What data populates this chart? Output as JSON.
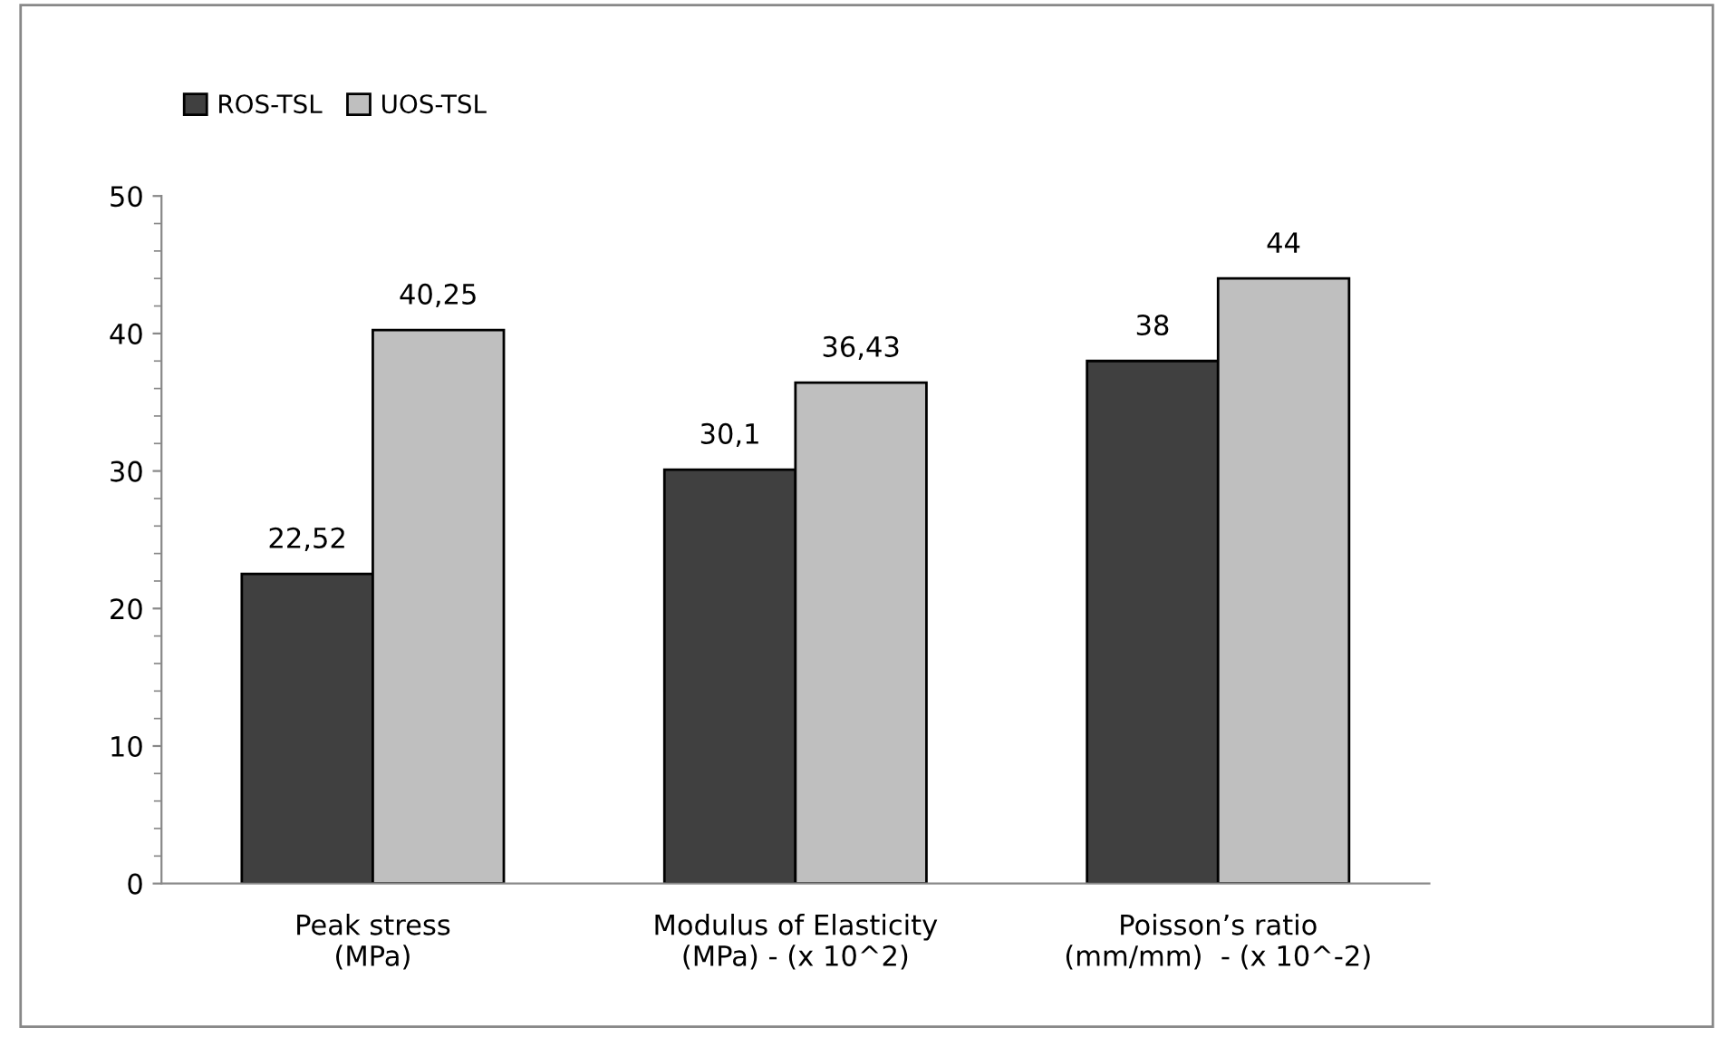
{
  "chart_data": {
    "type": "bar",
    "categories": [
      "Peak stress\n(MPa)",
      "Modulus of Elasticity\n(MPa) - (x 10^2)",
      "Poisson’s ratio\n(mm/mm)  - (x 10^-2)"
    ],
    "series": [
      {
        "name": "ROS-TSL",
        "color": "#404040",
        "values": [
          22.52,
          30.1,
          38
        ],
        "value_labels": [
          "22,52",
          "30,1",
          "38"
        ]
      },
      {
        "name": "UOS-TSL",
        "color": "#bfbfbf",
        "values": [
          40.25,
          36.43,
          44
        ],
        "value_labels": [
          "40,25",
          "36,43",
          "44"
        ]
      }
    ],
    "ylim": [
      0,
      50
    ],
    "yticks": [
      0,
      10,
      20,
      30,
      40,
      50
    ],
    "grid": false,
    "legend": "top left"
  }
}
